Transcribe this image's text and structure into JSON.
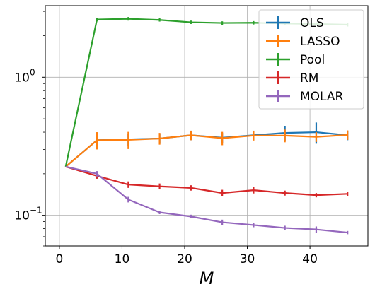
{
  "chart_data": {
    "type": "line",
    "xlabel": "M",
    "ylabel": "",
    "y_scale": "log",
    "xlim": [
      -2.25,
      49.25
    ],
    "ylim": [
      0.06,
      3.3
    ],
    "grid": true,
    "legend_position": "top-right",
    "x_ticks": [
      {
        "value": 0,
        "label": "0"
      },
      {
        "value": 10,
        "label": "10"
      },
      {
        "value": 20,
        "label": "20"
      },
      {
        "value": 30,
        "label": "30"
      },
      {
        "value": 40,
        "label": "40"
      }
    ],
    "y_ticks": [
      {
        "value": 0.1,
        "base": "10",
        "exp": "−1"
      },
      {
        "value": 1,
        "base": "10",
        "exp": "0"
      }
    ],
    "x": [
      1,
      6,
      11,
      16,
      21,
      26,
      31,
      36,
      41,
      46
    ],
    "series": [
      {
        "name": "OLS",
        "color": "#1f77b4",
        "values": [
          0.225,
          0.35,
          0.355,
          0.36,
          0.38,
          0.365,
          0.38,
          0.395,
          0.4,
          0.38
        ],
        "errors": [
          0.0,
          0.03,
          0.035,
          0.03,
          0.03,
          0.03,
          0.03,
          0.05,
          0.07,
          0.03
        ]
      },
      {
        "name": "LASSO",
        "color": "#ff7f0e",
        "values": [
          0.225,
          0.35,
          0.352,
          0.36,
          0.38,
          0.362,
          0.378,
          0.378,
          0.37,
          0.382
        ],
        "errors": [
          0.0,
          0.05,
          0.05,
          0.035,
          0.03,
          0.04,
          0.03,
          0.04,
          0.03,
          0.03
        ]
      },
      {
        "name": "Pool",
        "color": "#2ca02c",
        "values": [
          0.225,
          2.62,
          2.65,
          2.6,
          2.5,
          2.47,
          2.48,
          2.45,
          2.43,
          2.4
        ],
        "errors": [
          0.0,
          0.08,
          0.08,
          0.07,
          0.07,
          0.07,
          0.07,
          0.07,
          0.07,
          0.07
        ]
      },
      {
        "name": "RM",
        "color": "#d62728",
        "values": [
          0.225,
          0.193,
          0.167,
          0.162,
          0.158,
          0.145,
          0.152,
          0.145,
          0.14,
          0.143
        ],
        "errors": [
          0.0,
          0.009,
          0.009,
          0.008,
          0.007,
          0.008,
          0.008,
          0.006,
          0.005,
          0.005
        ]
      },
      {
        "name": "MOLAR",
        "color": "#9467bd",
        "values": [
          0.225,
          0.2,
          0.13,
          0.105,
          0.098,
          0.089,
          0.085,
          0.081,
          0.079,
          0.075
        ],
        "errors": [
          0.0,
          0.009,
          0.006,
          0.003,
          0.003,
          0.004,
          0.003,
          0.003,
          0.004,
          0.002
        ]
      }
    ]
  }
}
